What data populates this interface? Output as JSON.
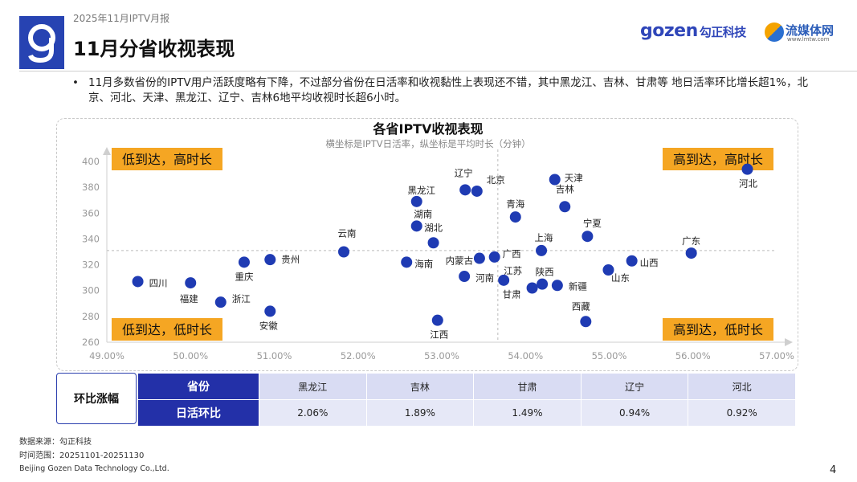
{
  "header": {
    "report_label": "2025年11月IPTV月报",
    "title": "11月分省收视表现",
    "brand_primary_latin": "gozen",
    "brand_primary_cn": "勾正科技",
    "brand_secondary": "流媒体网",
    "brand_secondary_url": "www.lmtw.com"
  },
  "bullet": "11月多数省份的IPTV用户活跃度略有下降，不过部分省份在日活率和收视黏性上表现还不错，其中黑龙江、吉林、甘肃等 地日活率环比增长超1%，北京、河北、天津、黑龙江、辽宁、吉林6地平均收视时长超6小时。",
  "chart_data": {
    "type": "scatter",
    "title": "各省IPTV收视表现",
    "subtitle": "横坐标是IPTV日活率，纵坐标是平均时长（分钟）",
    "xlabel": "",
    "ylabel": "",
    "xlim": [
      0.49,
      0.57
    ],
    "ylim": [
      260,
      400
    ],
    "x_ticks": [
      "49.00%",
      "50.00%",
      "51.00%",
      "52.00%",
      "53.00%",
      "54.00%",
      "55.00%",
      "56.00%",
      "57.00%"
    ],
    "y_ticks": [
      "260",
      "280",
      "300",
      "320",
      "340",
      "360",
      "380",
      "400"
    ],
    "reference_lines": {
      "x": 0.5367,
      "y": 331
    },
    "quadrants": {
      "top_left": "低到达，高时长",
      "top_right": "高到达，高时长",
      "bottom_left": "低到达，低时长",
      "bottom_right": "高到达，低时长"
    },
    "point_color": "#1f3bb3",
    "quadrant_color": "#f5a623",
    "points": [
      {
        "name": "四川",
        "x": 0.4937,
        "y": 307
      },
      {
        "name": "福建",
        "x": 0.5,
        "y": 306
      },
      {
        "name": "浙江",
        "x": 0.5036,
        "y": 291
      },
      {
        "name": "重庆",
        "x": 0.5064,
        "y": 322
      },
      {
        "name": "贵州",
        "x": 0.5095,
        "y": 324
      },
      {
        "name": "安徽",
        "x": 0.5095,
        "y": 284
      },
      {
        "name": "云南",
        "x": 0.5183,
        "y": 330
      },
      {
        "name": "海南",
        "x": 0.5258,
        "y": 322
      },
      {
        "name": "黑龙江",
        "x": 0.527,
        "y": 369
      },
      {
        "name": "湖南",
        "x": 0.527,
        "y": 350
      },
      {
        "name": "湖北",
        "x": 0.529,
        "y": 337
      },
      {
        "name": "江西",
        "x": 0.5295,
        "y": 277
      },
      {
        "name": "辽宁",
        "x": 0.5328,
        "y": 378
      },
      {
        "name": "北京",
        "x": 0.5342,
        "y": 377
      },
      {
        "name": "河南",
        "x": 0.5327,
        "y": 311
      },
      {
        "name": "内蒙古",
        "x": 0.5345,
        "y": 325
      },
      {
        "name": "广西",
        "x": 0.5363,
        "y": 326
      },
      {
        "name": "青海",
        "x": 0.5388,
        "y": 357
      },
      {
        "name": "上海",
        "x": 0.5419,
        "y": 331
      },
      {
        "name": "江苏",
        "x": 0.5374,
        "y": 308
      },
      {
        "name": "甘肃",
        "x": 0.5408,
        "y": 302
      },
      {
        "name": "陕西",
        "x": 0.542,
        "y": 305
      },
      {
        "name": "新疆",
        "x": 0.5438,
        "y": 304
      },
      {
        "name": "天津",
        "x": 0.5435,
        "y": 386
      },
      {
        "name": "吉林",
        "x": 0.5447,
        "y": 365
      },
      {
        "name": "宁夏",
        "x": 0.5474,
        "y": 342
      },
      {
        "name": "西藏",
        "x": 0.5472,
        "y": 276
      },
      {
        "name": "山东",
        "x": 0.5499,
        "y": 316
      },
      {
        "name": "山西",
        "x": 0.5527,
        "y": 323
      },
      {
        "name": "广东",
        "x": 0.5598,
        "y": 329
      },
      {
        "name": "河北",
        "x": 0.5665,
        "y": 394
      }
    ]
  },
  "table": {
    "row_label": "环比涨幅",
    "header_province": "省份",
    "header_metric": "日活环比",
    "provinces": [
      "黑龙江",
      "吉林",
      "甘肃",
      "辽宁",
      "河北"
    ],
    "values": [
      "2.06%",
      "1.89%",
      "1.49%",
      "0.94%",
      "0.92%"
    ]
  },
  "footer": {
    "source": "数据来源：勾正科技",
    "period": "时间范围：20251101-20251130",
    "company": "Beijing Gozen Data Technology Co.,Ltd.",
    "page": "4"
  },
  "colors": {
    "brand_blue": "#2743b2",
    "table_header": "#2330a8",
    "accent_orange": "#f5a623"
  }
}
